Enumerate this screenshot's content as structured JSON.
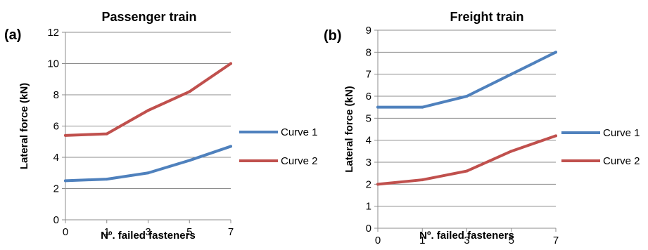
{
  "chart_data": [
    {
      "type": "line",
      "panel_label": "(a)",
      "title": "Passenger train",
      "xlabel": "Nº. failed fasteners",
      "ylabel": "Lateral force (kN)",
      "categories": [
        "0",
        "1",
        "3",
        "5",
        "7"
      ],
      "ylim": [
        0,
        12
      ],
      "yticks": [
        0,
        2,
        4,
        6,
        8,
        10,
        12
      ],
      "grid": true,
      "legend": "right",
      "series": [
        {
          "name": "Curve 1",
          "color": "#4f81bd",
          "values": [
            2.5,
            2.6,
            3.0,
            3.8,
            4.7
          ]
        },
        {
          "name": "Curve 2",
          "color": "#c0504d",
          "values": [
            5.4,
            5.5,
            7.0,
            8.2,
            10.0
          ]
        }
      ]
    },
    {
      "type": "line",
      "panel_label": "(b)",
      "title": "Freight train",
      "xlabel": "Nº. failed fasteners",
      "ylabel": "Lateral force (kN)",
      "categories": [
        "0",
        "1",
        "3",
        "5",
        "7"
      ],
      "ylim": [
        0,
        9
      ],
      "yticks": [
        0,
        1,
        2,
        3,
        4,
        5,
        6,
        7,
        8,
        9
      ],
      "grid": true,
      "legend": "right",
      "series": [
        {
          "name": "Curve 1",
          "color": "#4f81bd",
          "values": [
            5.5,
            5.5,
            6.0,
            7.0,
            8.0
          ]
        },
        {
          "name": "Curve 2",
          "color": "#c0504d",
          "values": [
            2.0,
            2.2,
            2.6,
            3.5,
            4.2
          ]
        }
      ]
    }
  ]
}
